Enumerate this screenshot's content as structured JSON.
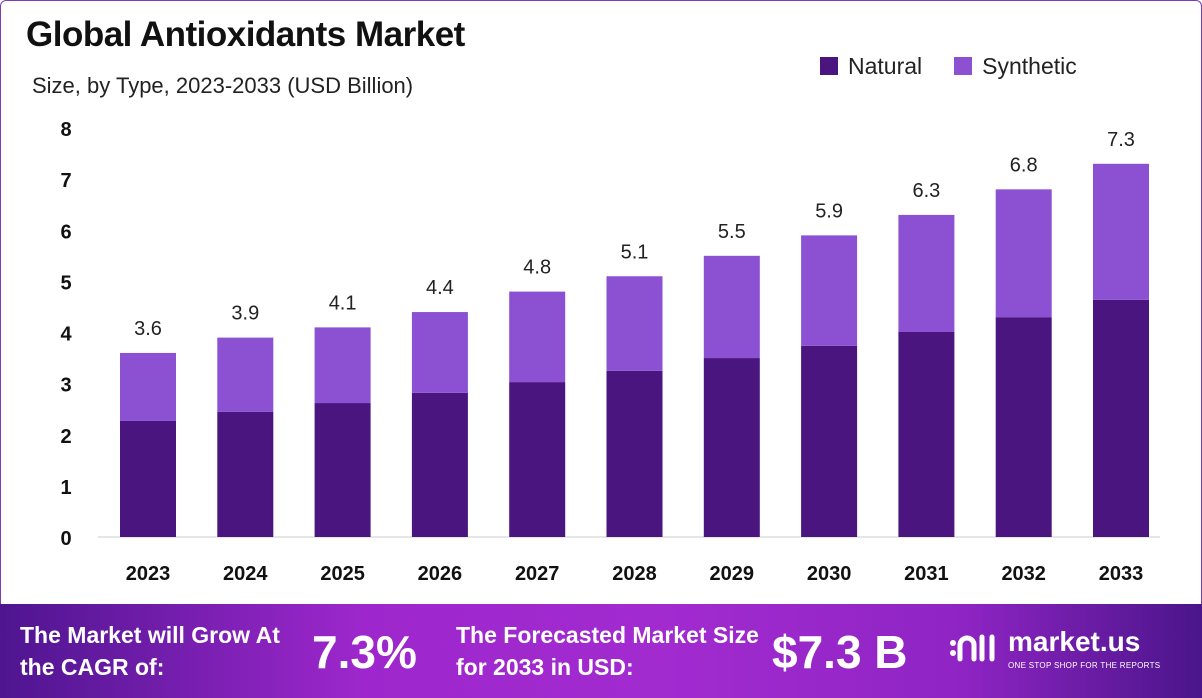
{
  "title": "Global Antioxidants Market",
  "subtitle": "Size, by Type, 2023-2033 (USD Billion)",
  "colors": {
    "natural": "#4b1580",
    "synthetic": "#8c50d2"
  },
  "chart_data": {
    "type": "bar",
    "stacked": true,
    "title": "Global Antioxidants Market",
    "subtitle": "Size, by Type, 2023-2033 (USD Billion)",
    "categories": [
      "2023",
      "2024",
      "2025",
      "2026",
      "2027",
      "2028",
      "2029",
      "2030",
      "2031",
      "2032",
      "2033"
    ],
    "series": [
      {
        "name": "Natural",
        "values": [
          2.27,
          2.45,
          2.62,
          2.82,
          3.03,
          3.25,
          3.5,
          3.74,
          4.01,
          4.3,
          4.64
        ]
      },
      {
        "name": "Synthetic",
        "values": [
          1.33,
          1.45,
          1.48,
          1.58,
          1.77,
          1.85,
          2.0,
          2.16,
          2.29,
          2.5,
          2.66
        ]
      }
    ],
    "totals": [
      "3.6",
      "3.9",
      "4.1",
      "4.4",
      "4.8",
      "5.1",
      "5.5",
      "5.9",
      "6.3",
      "6.8",
      "7.3"
    ],
    "yticks": [
      "0",
      "1",
      "2",
      "3",
      "4",
      "5",
      "6",
      "7",
      "8"
    ],
    "ylim": [
      0,
      8
    ],
    "xlabel": "",
    "ylabel": "",
    "legend": "top-right",
    "grid": false
  },
  "footer": {
    "cagr_label": "The Market will Grow At the CAGR of:",
    "cagr_value": "7.3%",
    "forecast_label": "The Forecasted Market Size for 2033 in USD:",
    "forecast_value": "$7.3 B",
    "brand": "market.us",
    "tagline": "ONE STOP SHOP FOR THE REPORTS"
  }
}
